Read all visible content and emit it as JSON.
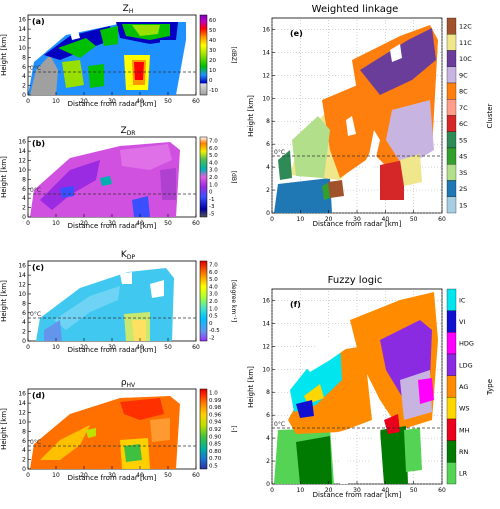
{
  "figure": {
    "xlabel": "Distance from radar [km]",
    "ylabel": "Height [km]",
    "melting_label": "0°C",
    "melting_height": 5,
    "x_ticks": [
      0,
      10,
      20,
      30,
      40,
      50,
      60
    ],
    "y_ticks": [
      0,
      2,
      4,
      6,
      8,
      10,
      12,
      14,
      16
    ],
    "y_ticks_right": [
      0,
      2,
      4,
      6,
      8,
      10,
      12,
      14,
      16
    ],
    "xlim": [
      0,
      60
    ],
    "ylim": [
      0,
      17
    ]
  },
  "panels": {
    "a": {
      "letter": "(a)",
      "title_main": "Z",
      "title_sub": "H",
      "unit": "[dBZ]",
      "cb_ticks": [
        "60",
        "50",
        "40",
        "30",
        "20",
        "10",
        "0",
        "-10"
      ]
    },
    "b": {
      "letter": "(b)",
      "title_main": "Z",
      "title_sub": "DR",
      "unit": "[dB]",
      "cb_ticks": [
        "7.0",
        "6.0",
        "5.0",
        "4.0",
        "3.0",
        "2.0",
        "1.0",
        "0",
        "-1",
        "-3",
        "-5"
      ]
    },
    "c": {
      "letter": "(c)",
      "title_main": "K",
      "title_sub": "DP",
      "unit": "[degree km⁻¹]",
      "cb_ticks": [
        "7.0",
        "6.0",
        "5.0",
        "4.0",
        "3.0",
        "2.0",
        "1.0",
        "0.5",
        "0",
        "-0.5",
        "-2"
      ]
    },
    "d": {
      "letter": "(d)",
      "title_main": "ρ",
      "title_sub": "HV",
      "unit": "[-]",
      "cb_ticks": [
        "1.0",
        "0.99",
        "0.98",
        "0.96",
        "0.94",
        "0.92",
        "0.90",
        "0.85",
        "0.80",
        "0.70",
        "0.5"
      ]
    },
    "e": {
      "letter": "(e)",
      "title": "Weighted linkage",
      "legend_title": "Cluster",
      "classes": [
        "12C",
        "11C",
        "10C",
        "9C",
        "8C",
        "7C",
        "6C",
        "5S",
        "4S",
        "3S",
        "2S",
        "1S"
      ],
      "colors": [
        "#a0522d",
        "#f0e68c",
        "#6a3d9a",
        "#c8b4e0",
        "#ff7f0e",
        "#ff9e8a",
        "#d62728",
        "#2e8b57",
        "#33a02c",
        "#b2df8a",
        "#1f78b4",
        "#a6cee3"
      ]
    },
    "f": {
      "letter": "(f)",
      "title": "Fuzzy logic",
      "legend_title": "Type",
      "classes": [
        "IC",
        "VI",
        "HDG",
        "LDG",
        "AG",
        "WS",
        "MH",
        "RN",
        "LR"
      ],
      "colors": [
        "#00e5ee",
        "#1010d0",
        "#ff00ff",
        "#8a2be2",
        "#ff8c00",
        "#ffd700",
        "#e8001c",
        "#007a00",
        "#55d355"
      ]
    }
  },
  "chart_data": [
    {
      "type": "heatmap",
      "panel": "a",
      "title": "ZH",
      "xlabel": "Distance from radar [km]",
      "ylabel": "Height [km]",
      "xlim": [
        0,
        60
      ],
      "ylim": [
        0,
        16
      ],
      "colorbar_unit": "dBZ",
      "colorbar_range": [
        -10,
        60
      ],
      "melting_layer_km": 5
    },
    {
      "type": "heatmap",
      "panel": "b",
      "title": "ZDR",
      "xlabel": "Distance from radar [km]",
      "ylabel": "Height [km]",
      "xlim": [
        0,
        60
      ],
      "ylim": [
        0,
        16
      ],
      "colorbar_unit": "dB",
      "colorbar_range": [
        -5,
        7.0
      ],
      "melting_layer_km": 5
    },
    {
      "type": "heatmap",
      "panel": "c",
      "title": "KDP",
      "xlabel": "Distance from radar [km]",
      "ylabel": "Height [km]",
      "xlim": [
        0,
        60
      ],
      "ylim": [
        0,
        16
      ],
      "colorbar_unit": "degree km-1",
      "colorbar_range": [
        -2,
        7.0
      ],
      "melting_layer_km": 5
    },
    {
      "type": "heatmap",
      "panel": "d",
      "title": "ρHV",
      "xlabel": "Distance from radar [km]",
      "ylabel": "Height [km]",
      "xlim": [
        0,
        60
      ],
      "ylim": [
        0,
        16
      ],
      "colorbar_unit": "-",
      "colorbar_range": [
        0.5,
        1.0
      ],
      "melting_layer_km": 5
    },
    {
      "type": "heatmap",
      "panel": "e",
      "title": "Weighted linkage",
      "xlabel": "Distance from radar [km]",
      "ylabel": "Height [km]",
      "xlim": [
        0,
        60
      ],
      "ylim": [
        0,
        17
      ],
      "legend_title": "Cluster",
      "categories": [
        "12C",
        "11C",
        "10C",
        "9C",
        "8C",
        "7C",
        "6C",
        "5S",
        "4S",
        "3S",
        "2S",
        "1S"
      ],
      "melting_layer_km": 5
    },
    {
      "type": "heatmap",
      "panel": "f",
      "title": "Fuzzy logic",
      "xlabel": "Distance from radar [km]",
      "ylabel": "Height [km]",
      "xlim": [
        0,
        60
      ],
      "ylim": [
        0,
        17
      ],
      "legend_title": "Type",
      "categories": [
        "IC",
        "VI",
        "HDG",
        "LDG",
        "AG",
        "WS",
        "MH",
        "RN",
        "LR"
      ],
      "melting_layer_km": 5
    }
  ]
}
